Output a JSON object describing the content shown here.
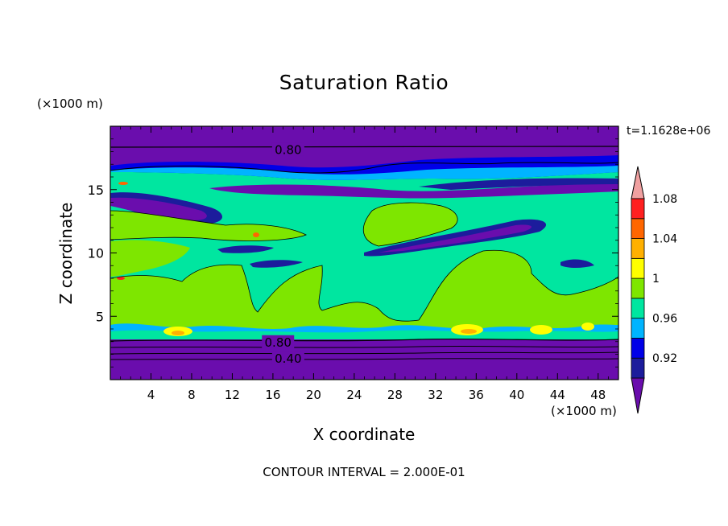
{
  "chart_data": {
    "type": "heatmap",
    "title": "Saturation Ratio",
    "xlabel": "X coordinate",
    "ylabel": "Z coordinate",
    "x_unit": "(×1000 m)",
    "y_unit": "(×1000 m)",
    "time_label": "t=1.1628e+06",
    "contour_interval_text": "CONTOUR INTERVAL = 2.000E-01",
    "xlim": [
      0,
      50
    ],
    "ylim": [
      0,
      20
    ],
    "x_ticks": [
      4,
      8,
      12,
      16,
      20,
      24,
      28,
      32,
      36,
      40,
      44,
      48
    ],
    "y_ticks": [
      5,
      10,
      15
    ],
    "contour_labels": [
      {
        "text": "0.80",
        "x": 17.5,
        "y": 18.2
      },
      {
        "text": "0.80",
        "x": 16.5,
        "y": 3.0
      },
      {
        "text": "0.40",
        "x": 17.5,
        "y": 1.7
      }
    ],
    "colorbar": {
      "levels": [
        0.92,
        0.94,
        0.96,
        0.98,
        1.0,
        1.02,
        1.04,
        1.06,
        1.08,
        1.1
      ],
      "tick_labels": [
        "0.92",
        "0.96",
        "1",
        "1.04",
        "1.08"
      ],
      "colors": [
        "#6a0dad",
        "#1c1c9c",
        "#0000e8",
        "#00b4ff",
        "#00e6a0",
        "#7ee600",
        "#ffff00",
        "#ffb000",
        "#ff6600",
        "#ff2020",
        "#f0a0a0"
      ]
    },
    "colors": {
      "below": "#6a0dad",
      "dark_blue": "#1c1c9c",
      "blue": "#0000e8",
      "cyan": "#00b4ff",
      "green_teal": "#00e6a0",
      "yellow_green": "#7ee600",
      "yellow": "#ffff00",
      "orange": "#ffb000",
      "red_orange": "#ff6600",
      "red": "#ff2020",
      "above": "#f0a0a0"
    }
  }
}
